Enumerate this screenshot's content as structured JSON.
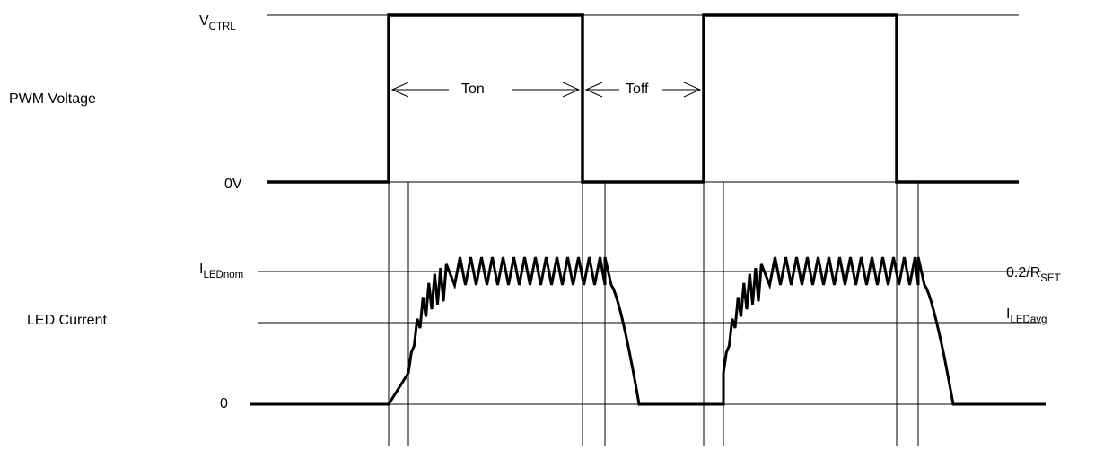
{
  "pwm": {
    "row_label": "PWM Voltage",
    "high_label_main": "V",
    "high_label_sub": "CTRL",
    "low_label": "0V",
    "ton_label": "Ton",
    "toff_label": "Toff"
  },
  "current": {
    "row_label": "LED Current",
    "nom_label_main": "I",
    "nom_label_sub": "LEDnom",
    "zero_label": "0",
    "set_label_main": "0.2/R",
    "set_label_sub": "SET",
    "avg_label_main": "I",
    "avg_label_sub": "LEDavg"
  }
}
